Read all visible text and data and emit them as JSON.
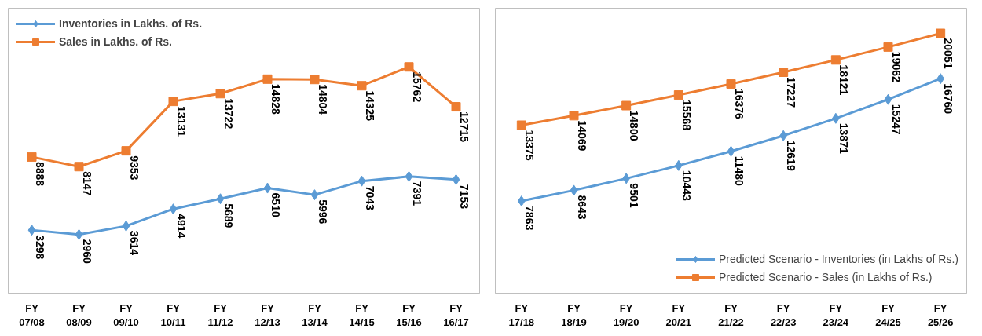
{
  "chart_data": [
    {
      "type": "line",
      "categories": [
        "FY\n07/08",
        "FY\n08/09",
        "FY\n09/10",
        "FY\n10/11",
        "FY\n11/12",
        "FY\n12/13",
        "FY\n13/14",
        "FY\n14/15",
        "FY\n15/16",
        "FY\n16/17"
      ],
      "data_labels": true,
      "legend": "top left",
      "grid": false,
      "tick_labels": "x",
      "series": [
        {
          "name": "Inventories in Lakhs. of Rs.",
          "color": "#5b9bd5",
          "marker": "diamond",
          "values": [
            3298,
            2960,
            3614,
            4914,
            5689,
            6510,
            5996,
            7043,
            7391,
            7153
          ]
        },
        {
          "name": "Sales in Lakhs. of Rs.",
          "color": "#ed7d31",
          "marker": "square",
          "values": [
            8888,
            8147,
            9353,
            13131,
            13722,
            14828,
            14804,
            14325,
            15762,
            12715
          ]
        }
      ]
    },
    {
      "type": "line",
      "categories": [
        "FY\n17/18",
        "FY\n18/19",
        "FY\n19/20",
        "FY\n20/21",
        "FY\n21/22",
        "FY\n22/23",
        "FY\n23/24",
        "FY\n24/25",
        "FY\n25/26"
      ],
      "data_labels": true,
      "legend": "bottom right",
      "grid": false,
      "tick_labels": "x",
      "series": [
        {
          "name": "Predicted Scenario - Inventories (in Lakhs of Rs.)",
          "color": "#5b9bd5",
          "marker": "diamond",
          "values": [
            7863,
            8643,
            9501,
            10443,
            11480,
            12619,
            13871,
            15247,
            16760
          ]
        },
        {
          "name": "Predicted Scenario - Sales (in Lakhs of Rs.)",
          "color": "#ed7d31",
          "marker": "square",
          "values": [
            13375,
            14069,
            14800,
            15568,
            16376,
            17227,
            18121,
            19062,
            20051
          ]
        }
      ]
    }
  ]
}
